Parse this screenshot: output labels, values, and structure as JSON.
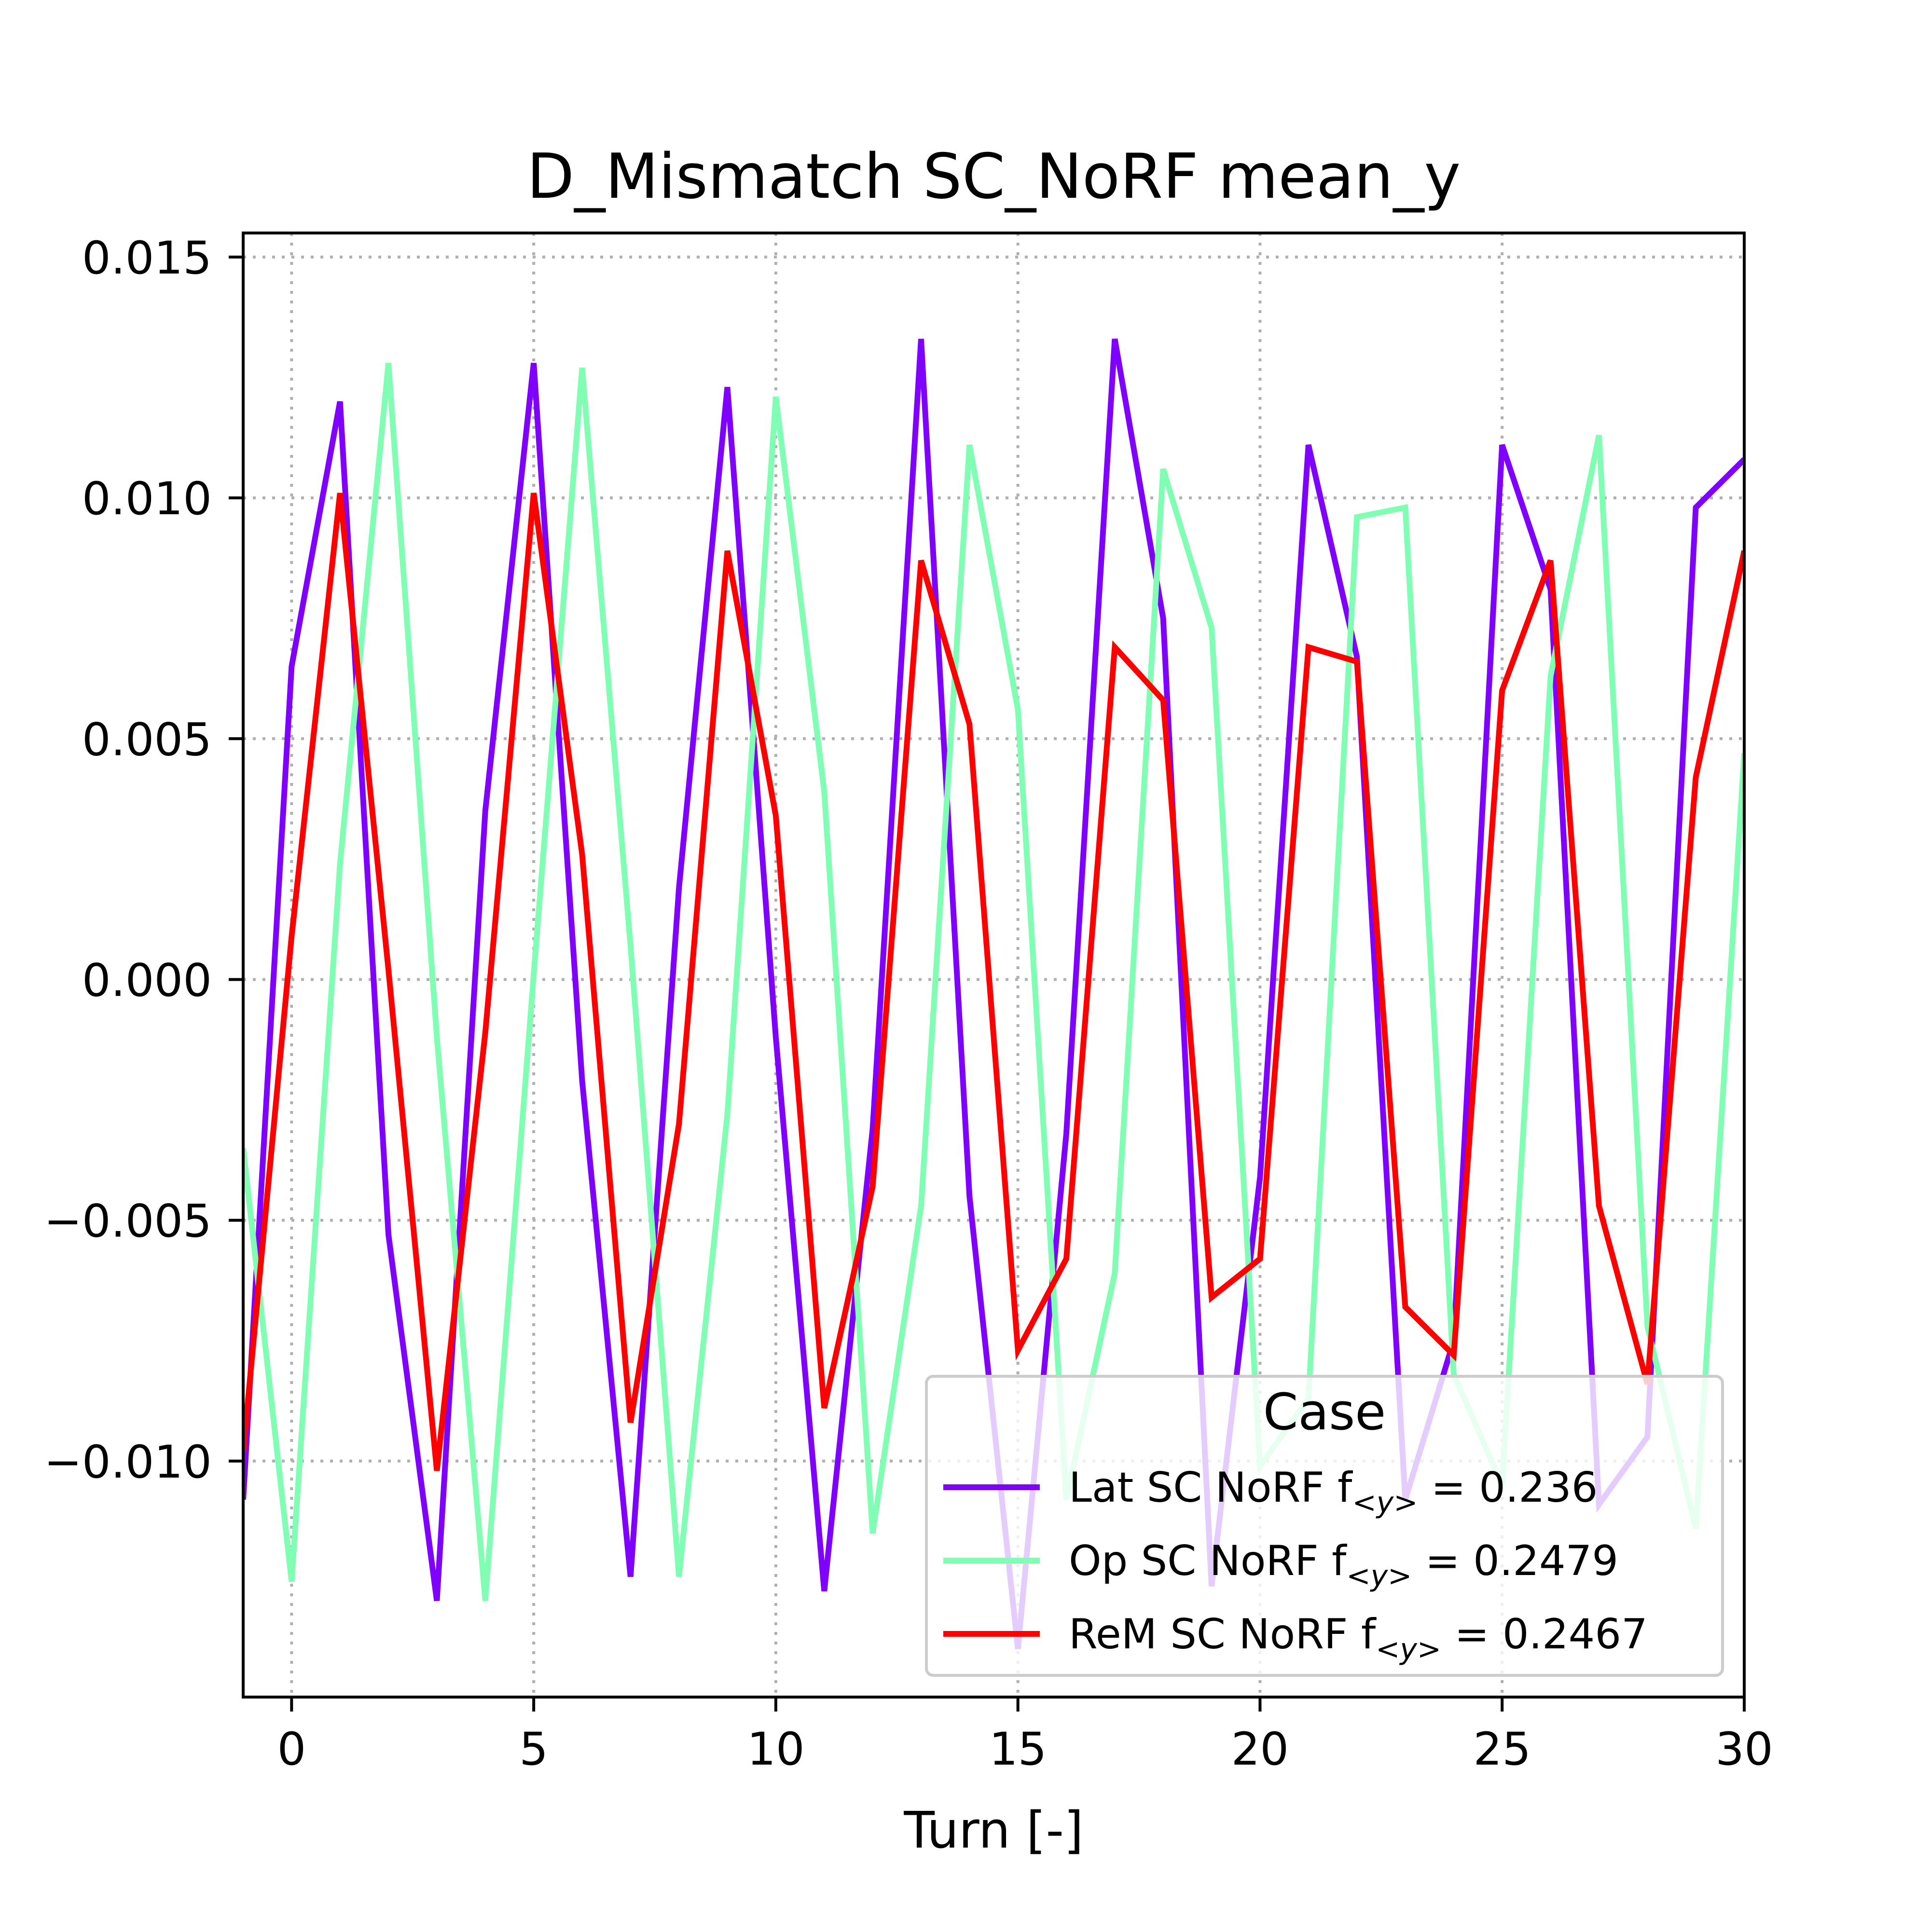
{
  "chart_data": {
    "type": "line",
    "title": "D_Mismatch SC_NoRF mean_y",
    "xlabel": "Turn [-]",
    "ylabel": "",
    "xlim": [
      -1,
      30
    ],
    "ylim": [
      -0.0149,
      0.0155
    ],
    "x_ticks": [
      0,
      5,
      10,
      15,
      20,
      25,
      30
    ],
    "x_tick_labels": [
      "0",
      "5",
      "10",
      "15",
      "20",
      "25",
      "30"
    ],
    "y_ticks": [
      -0.01,
      -0.005,
      0.0,
      0.005,
      0.01,
      0.015
    ],
    "y_tick_labels": [
      "−0.010",
      "−0.005",
      "0.000",
      "0.005",
      "0.010",
      "0.015"
    ],
    "grid": true,
    "legend": {
      "title": "Case",
      "placement": "lower right"
    },
    "x": [
      -1,
      0,
      1,
      2,
      3,
      4,
      5,
      6,
      7,
      8,
      9,
      10,
      11,
      12,
      13,
      14,
      15,
      16,
      17,
      18,
      19,
      20,
      21,
      22,
      23,
      24,
      25,
      26,
      27,
      28,
      29,
      30
    ],
    "series": [
      {
        "name": "Lat SC NoRF",
        "label_math": "f",
        "label_sub": "<y>",
        "label_value": "= 0.236",
        "color": "#7f00ff",
        "values": [
          -0.0108,
          0.0065,
          0.012,
          -0.0053,
          -0.0129,
          0.0035,
          0.0128,
          -0.0021,
          -0.0124,
          0.0019,
          0.0123,
          -0.0012,
          -0.0127,
          -0.0031,
          0.0133,
          -0.0045,
          -0.0139,
          -0.0032,
          0.0133,
          0.0075,
          -0.0126,
          -0.0041,
          0.0111,
          0.0067,
          -0.0108,
          -0.0075,
          0.0111,
          0.0081,
          -0.0109,
          -0.0095,
          0.0098,
          0.0108
        ]
      },
      {
        "name": "Op SC NoRF",
        "label_math": "f",
        "label_sub": "<y>",
        "label_value": "= 0.2479",
        "color": "#80ffb4",
        "values": [
          -0.0035,
          -0.0125,
          0.0024,
          0.0128,
          -0.0012,
          -0.0129,
          0.0001,
          0.0127,
          0.0007,
          -0.0124,
          -0.0028,
          0.0121,
          0.0039,
          -0.0115,
          -0.0047,
          0.0111,
          0.0056,
          -0.0108,
          -0.0061,
          0.0106,
          0.0073,
          -0.0101,
          -0.0087,
          0.0096,
          0.0098,
          -0.0082,
          -0.0105,
          0.0063,
          0.0113,
          -0.0072,
          -0.0114,
          0.0047
        ]
      },
      {
        "name": "ReM SC NoRF",
        "label_math": "f",
        "label_sub": "<y>",
        "label_value": "= 0.2467",
        "color": "#ff0000",
        "values": [
          -0.0098,
          0.0009,
          0.0101,
          0.0002,
          -0.0102,
          -0.0011,
          0.0101,
          0.0026,
          -0.0092,
          -0.003,
          0.0089,
          0.0034,
          -0.0089,
          -0.0043,
          0.0087,
          0.0053,
          -0.0077,
          -0.0058,
          0.0069,
          0.0058,
          -0.0066,
          -0.0058,
          0.0069,
          0.0066,
          -0.0068,
          -0.0078,
          0.006,
          0.0087,
          -0.0047,
          -0.0084,
          0.0042,
          0.0089
        ]
      }
    ]
  }
}
